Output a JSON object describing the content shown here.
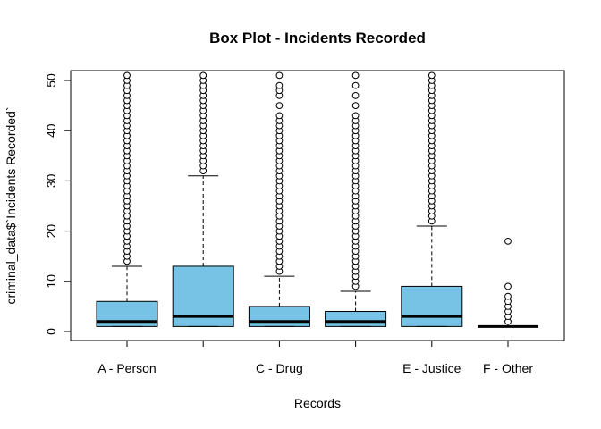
{
  "chart_data": {
    "type": "boxplot",
    "title": "Box Plot - Incidents Recorded",
    "xlabel": "Records",
    "ylabel": "criminal_data$`Incidents Recorded`",
    "ylim": [
      -2,
      52
    ],
    "yticks": [
      0,
      10,
      20,
      30,
      40,
      50
    ],
    "categories": [
      "A - Person",
      "",
      "C - Drug",
      "",
      "E - Justice",
      "F - Other"
    ],
    "box_fill": "#77c3e6",
    "grid": false,
    "boxes": [
      {
        "min": 1,
        "q1": 1,
        "median": 2,
        "q3": 6,
        "max": 13,
        "outliers_from": 14,
        "outliers_to": 52,
        "outliers": []
      },
      {
        "min": 1,
        "q1": 1,
        "median": 3,
        "q3": 13,
        "max": 31,
        "outliers_from": 32,
        "outliers_to": 52,
        "outliers": []
      },
      {
        "min": 1,
        "q1": 1,
        "median": 2,
        "q3": 5,
        "max": 11,
        "outliers_from": 12,
        "outliers_to": 41,
        "outliers": [
          42,
          43,
          45,
          47,
          48,
          49,
          51,
          52
        ]
      },
      {
        "min": 1,
        "q1": 1,
        "median": 2,
        "q3": 4,
        "max": 8,
        "outliers_from": 9,
        "outliers_to": 43,
        "outliers": [
          45,
          47,
          49,
          51,
          52
        ]
      },
      {
        "min": 1,
        "q1": 1,
        "median": 3,
        "q3": 9,
        "max": 21,
        "outliers_from": 22,
        "outliers_to": 52,
        "outliers": []
      },
      {
        "min": 1,
        "q1": 1,
        "median": 1,
        "q3": 1,
        "max": 1,
        "outliers_from": null,
        "outliers_to": null,
        "outliers": [
          2,
          3,
          4,
          5,
          6,
          7,
          9,
          18
        ]
      }
    ]
  }
}
